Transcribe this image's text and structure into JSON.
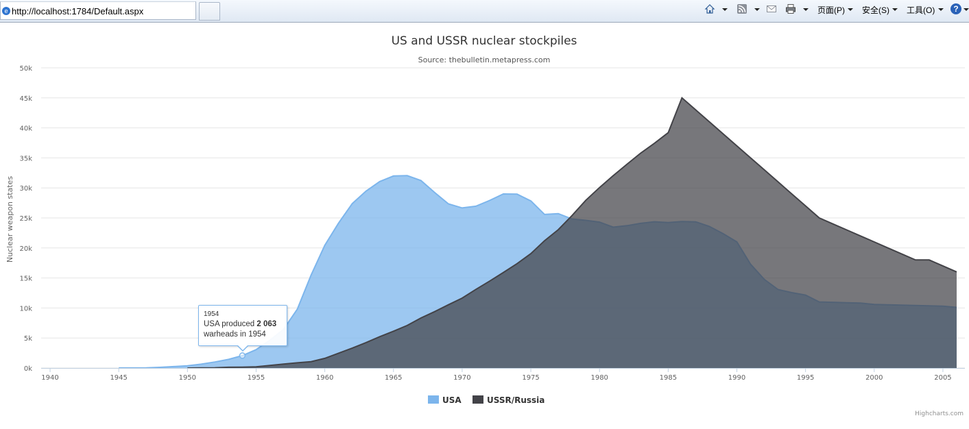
{
  "browser": {
    "url": "http://localhost:1784/Default.aspx",
    "menu": {
      "page": "页面(P)",
      "safety": "安全(S)",
      "tools": "工具(O)"
    },
    "icons": [
      "home-icon",
      "rss-feed-icon",
      "mail-icon",
      "print-icon",
      "help-icon"
    ]
  },
  "tooltip": {
    "year": "1954",
    "pre": "USA produced ",
    "value": "2 063",
    "post": "warheads in 1954"
  },
  "chart_data": {
    "type": "area",
    "title": "US and USSR nuclear stockpiles",
    "subtitle": "Source: thebulletin.metapress.com",
    "xlabel": "",
    "ylabel": "Nuclear weapon states",
    "xlim": [
      1940,
      2006
    ],
    "ylim": [
      0,
      50000
    ],
    "x_ticks": [
      1940,
      1945,
      1950,
      1955,
      1960,
      1965,
      1970,
      1975,
      1980,
      1985,
      1990,
      1995,
      2000,
      2005
    ],
    "y_ticks": [
      0,
      5000,
      10000,
      15000,
      20000,
      25000,
      30000,
      35000,
      40000,
      45000,
      50000
    ],
    "y_tick_labels": [
      "0k",
      "5k",
      "10k",
      "15k",
      "20k",
      "25k",
      "30k",
      "35k",
      "40k",
      "45k",
      "50k"
    ],
    "grid": true,
    "legend_position": "bottom-center",
    "credits": "Highcharts.com",
    "x": [
      1940,
      1941,
      1942,
      1943,
      1944,
      1945,
      1946,
      1947,
      1948,
      1949,
      1950,
      1951,
      1952,
      1953,
      1954,
      1955,
      1956,
      1957,
      1958,
      1959,
      1960,
      1961,
      1962,
      1963,
      1964,
      1965,
      1966,
      1967,
      1968,
      1969,
      1970,
      1971,
      1972,
      1973,
      1974,
      1975,
      1976,
      1977,
      1978,
      1979,
      1980,
      1981,
      1982,
      1983,
      1984,
      1985,
      1986,
      1987,
      1988,
      1989,
      1990,
      1991,
      1992,
      1993,
      1994,
      1995,
      1996,
      1997,
      1998,
      1999,
      2000,
      2001,
      2002,
      2003,
      2004,
      2005,
      2006
    ],
    "series": [
      {
        "name": "USA",
        "color": "#7cb5ec",
        "values": [
          null,
          null,
          null,
          null,
          null,
          6,
          11,
          32,
          110,
          235,
          369,
          640,
          1005,
          1436,
          2063,
          3057,
          4618,
          6444,
          9822,
          15468,
          20434,
          24126,
          27387,
          29459,
          31056,
          31982,
          32040,
          31233,
          29224,
          27342,
          26662,
          26956,
          27912,
          28999,
          28965,
          27826,
          25579,
          25722,
          24826,
          24605,
          24304,
          23464,
          23708,
          24099,
          24357,
          24237,
          24401,
          24344,
          23586,
          22380,
          21004,
          17287,
          14747,
          13076,
          12555,
          12144,
          11009,
          10950,
          10871,
          10824,
          10577,
          10527,
          10475,
          10421,
          10358,
          10295,
          10104
        ]
      },
      {
        "name": "USSR/Russia",
        "color": "#434348",
        "values": [
          null,
          null,
          null,
          null,
          null,
          null,
          null,
          null,
          null,
          null,
          5,
          25,
          50,
          120,
          150,
          200,
          426,
          660,
          869,
          1060,
          1605,
          2471,
          3322,
          4238,
          5221,
          6129,
          7089,
          8339,
          9399,
          10538,
          11643,
          13092,
          14478,
          15915,
          17385,
          19055,
          21205,
          23044,
          25393,
          27935,
          30062,
          32049,
          33952,
          35804,
          37431,
          39197,
          45000,
          43000,
          41000,
          39000,
          37000,
          35000,
          33000,
          31000,
          29000,
          27000,
          25000,
          24000,
          23000,
          22000,
          21000,
          20000,
          19000,
          18000,
          18000,
          17000,
          16000
        ]
      }
    ],
    "annotations": [
      {
        "type": "tooltip",
        "x": 1954,
        "series": "USA",
        "y": 2063
      }
    ]
  }
}
